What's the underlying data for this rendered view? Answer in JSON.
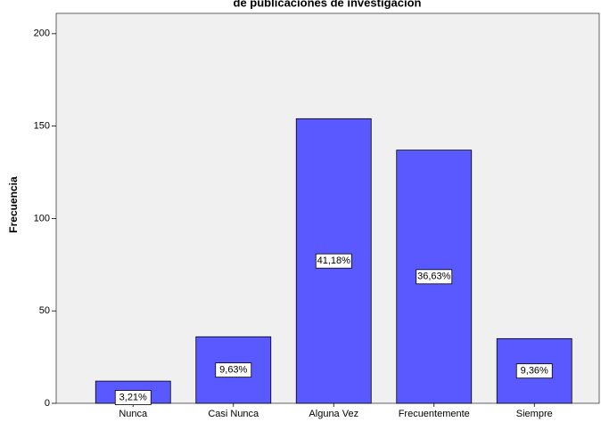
{
  "chart_data": {
    "type": "bar",
    "title": "de publicaciones de investigación",
    "y_label": "Frecuencia",
    "categories": [
      "Nunca",
      "Casi Nunca",
      "Alguna Vez",
      "Frecuentemente",
      "Siempre"
    ],
    "values": [
      12,
      36,
      154,
      137,
      35
    ],
    "percentage_labels": [
      "3,21%",
      "9,63%",
      "41,18%",
      "36,63%",
      "9,36%"
    ],
    "color": "#5959ff",
    "ylim": [
      0,
      211
    ],
    "yticks": [
      0,
      50,
      100,
      150,
      200
    ],
    "grid": false
  }
}
